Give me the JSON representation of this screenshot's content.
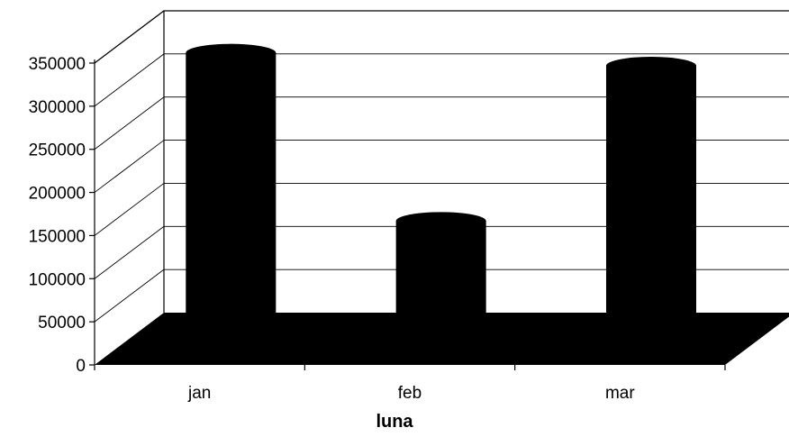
{
  "chart_data": {
    "type": "bar",
    "style": "3d-cylinder",
    "categories": [
      "jan",
      "feb",
      "mar"
    ],
    "values": [
      345000,
      150000,
      330000
    ],
    "title": "",
    "xlabel": "luna",
    "ylabel": "",
    "ylim": [
      0,
      350000
    ],
    "yticks": [
      0,
      50000,
      100000,
      150000,
      200000,
      250000,
      300000,
      350000
    ],
    "ytick_labels": [
      "0",
      "50000",
      "100000",
      "150000",
      "200000",
      "250000",
      "300000",
      "350000"
    ],
    "grid": true,
    "legend": "none",
    "bar_color": "#000000",
    "floor_color": "#000000",
    "gridline_color": "#000000"
  }
}
